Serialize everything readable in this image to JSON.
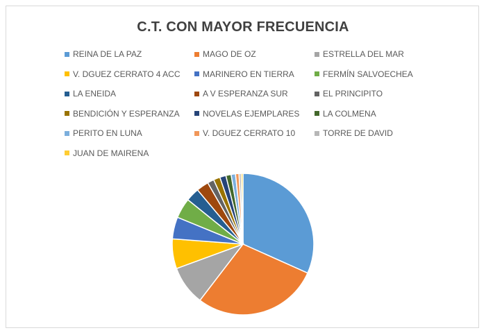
{
  "chart_data": {
    "type": "pie",
    "title": "C.T. CON MAYOR FRECUENCIA",
    "legend_position": "top",
    "categories": [
      "REINA DE LA PAZ",
      "MAGO DE OZ",
      "ESTRELLA DEL MAR",
      "V. DGUEZ CERRATO 4 ACC",
      "MARINERO EN TIERRA",
      "FERMÍN SALVOECHEA",
      "LA ENEIDA",
      "A V ESPERANZA SUR",
      "EL PRINCIPITO",
      "BENDICIÓN Y ESPERANZA",
      "NOVELAS EJEMPLARES",
      "LA COLMENA",
      "PERITO EN LUNA",
      "V. DGUEZ CERRATO 10",
      "TORRE DE DAVID",
      "JUAN DE MAIRENA"
    ],
    "values": [
      31.7,
      28.7,
      9.0,
      6.8,
      5.0,
      4.6,
      3.1,
      2.8,
      1.5,
      1.5,
      1.4,
      1.2,
      1.0,
      0.8,
      0.5,
      0.4
    ],
    "colors": [
      "#5b9bd5",
      "#ed7d31",
      "#a5a5a5",
      "#ffc000",
      "#4472c4",
      "#70ad47",
      "#255e91",
      "#9e480e",
      "#636363",
      "#997300",
      "#264478",
      "#43682b",
      "#7cafdd",
      "#f1975a",
      "#b7b7b7",
      "#ffcd33"
    ]
  }
}
